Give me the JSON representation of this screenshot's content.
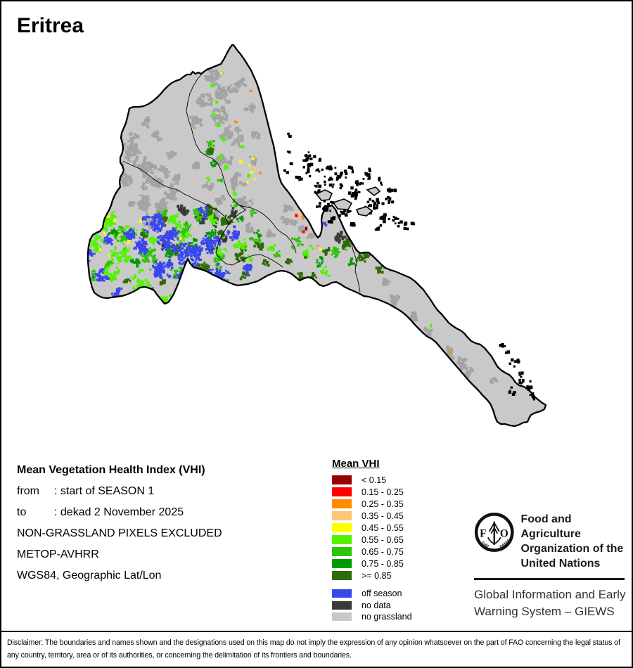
{
  "title": "Eritrea",
  "info_block": {
    "heading": "Mean Vegetation Health Index (VHI)",
    "rows": [
      {
        "label": "from",
        "value": ": start of SEASON 1"
      },
      {
        "label": "to",
        "value": ": dekad 2 November 2025"
      }
    ],
    "lines": [
      "NON-GRASSLAND PIXELS EXCLUDED",
      "METOP-AVHRR",
      "WGS84, Geographic Lat/Lon"
    ]
  },
  "legend": {
    "title": "Mean VHI",
    "classes": [
      {
        "label": "< 0.15",
        "color": "#990000"
      },
      {
        "label": "0.15 - 0.25",
        "color": "#FF0000"
      },
      {
        "label": "0.25 - 0.35",
        "color": "#FF8C00"
      },
      {
        "label": "0.35 - 0.45",
        "color": "#FCC878"
      },
      {
        "label": "0.45 - 0.55",
        "color": "#FFFF00"
      },
      {
        "label": "0.55 - 0.65",
        "color": "#55F200"
      },
      {
        "label": "0.65 - 0.75",
        "color": "#2EC408"
      },
      {
        "label": "0.75 - 0.85",
        "color": "#009B00"
      },
      {
        "label": ">= 0.85",
        "color": "#2F6B07"
      }
    ],
    "extra_classes": [
      {
        "label": "off season",
        "color": "#3A46EE"
      },
      {
        "label": "no data",
        "color": "#3A3A3A"
      },
      {
        "label": "no grassland",
        "color": "#C9C9C9"
      }
    ]
  },
  "map": {
    "land_color": "#C9C9C9",
    "terrain_patch_color": "#A4A4A4",
    "border_color": "#000000"
  },
  "branding": {
    "logo_text": "FAO",
    "logo_motto_left": "FIAT",
    "logo_motto_right": "PANIS",
    "org_lines": [
      "Food and Agriculture",
      "Organization of the",
      "United Nations"
    ],
    "giews_lines": [
      "Global Information and Early",
      "Warning System – GIEWS"
    ]
  },
  "disclaimer": "Disclaimer: The boundaries and names shown and the designations used on this map do not imply the expression of any opinion whatsoever on the part of FAO concerning the legal status of any country, territory, area or of its authorities, or concerning the delimitation of its frontiers and boundaries."
}
